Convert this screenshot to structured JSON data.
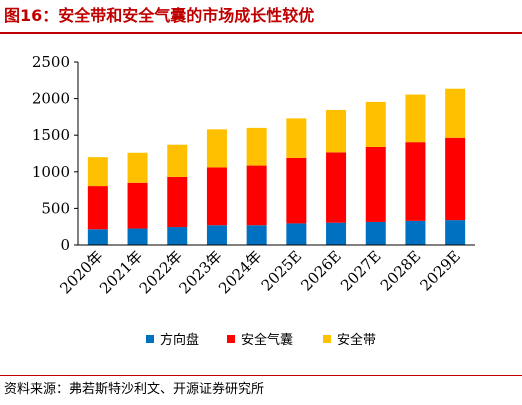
{
  "title": "图16：安全带和安全气囊的市场成长性较优",
  "source": "资料来源：弗若斯特沙利文、开源证券研究所",
  "colors": {
    "title": "#c00000",
    "方向盘": "#0070c0",
    "安全气囊": "#ff0000",
    "安全带": "#ffc000"
  },
  "chart_data": {
    "type": "bar",
    "stacked": true,
    "title": "",
    "xlabel": "",
    "ylabel": "",
    "categories": [
      "2020年",
      "2021年",
      "2022年",
      "2023年",
      "2024年",
      "2025E",
      "2026E",
      "2027E",
      "2028E",
      "2029E"
    ],
    "series": [
      {
        "name": "方向盘",
        "color": "#0070c0",
        "values": [
          215,
          225,
          245,
          270,
          270,
          295,
          305,
          315,
          330,
          340
        ]
      },
      {
        "name": "安全气囊",
        "color": "#ff0000",
        "values": [
          590,
          625,
          685,
          790,
          815,
          895,
          960,
          1025,
          1075,
          1125
        ]
      },
      {
        "name": "安全带",
        "color": "#ffc000",
        "values": [
          395,
          410,
          440,
          520,
          515,
          540,
          580,
          615,
          650,
          670
        ]
      }
    ],
    "ylim": [
      0,
      2500
    ],
    "yticks": [
      "0",
      "500",
      "1000",
      "1500",
      "2000",
      "2500"
    ],
    "grid": false,
    "legend_position": "bottom"
  }
}
